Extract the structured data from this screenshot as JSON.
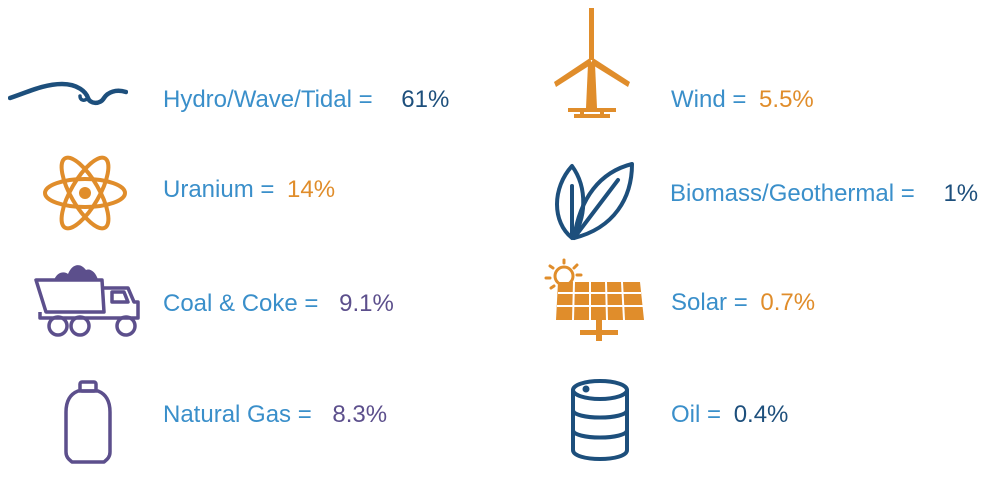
{
  "colors": {
    "label": "#3a8fca",
    "navy": "#1d4f7c",
    "orange": "#e08d2b",
    "purple": "#5c4f8c"
  },
  "items": [
    {
      "name": "hydro",
      "icon": "wave-icon",
      "label": "Hydro/Wave/Tidal =",
      "value": "61%",
      "value_color": "#1d4f7c"
    },
    {
      "name": "uranium",
      "icon": "atom-icon",
      "label": "Uranium =",
      "value": "14%",
      "value_color": "#e08d2b"
    },
    {
      "name": "coal",
      "icon": "mining-truck-icon",
      "label": "Coal & Coke =",
      "value": "9.1%",
      "value_color": "#5c4f8c"
    },
    {
      "name": "natural-gas",
      "icon": "gas-cylinder-icon",
      "label": "Natural Gas =",
      "value": "8.3%",
      "value_color": "#5c4f8c"
    },
    {
      "name": "wind",
      "icon": "wind-turbine-icon",
      "label": "Wind =",
      "value": "5.5%",
      "value_color": "#e08d2b"
    },
    {
      "name": "biomass",
      "icon": "leaves-icon",
      "label": "Biomass/Geothermal =",
      "value": "1%",
      "value_color": "#1d4f7c"
    },
    {
      "name": "solar",
      "icon": "solar-panel-icon",
      "label": "Solar =",
      "value": "0.7%",
      "value_color": "#e08d2b"
    },
    {
      "name": "oil",
      "icon": "oil-barrel-icon",
      "label": "Oil =",
      "value": "0.4%",
      "value_color": "#1d4f7c"
    }
  ]
}
